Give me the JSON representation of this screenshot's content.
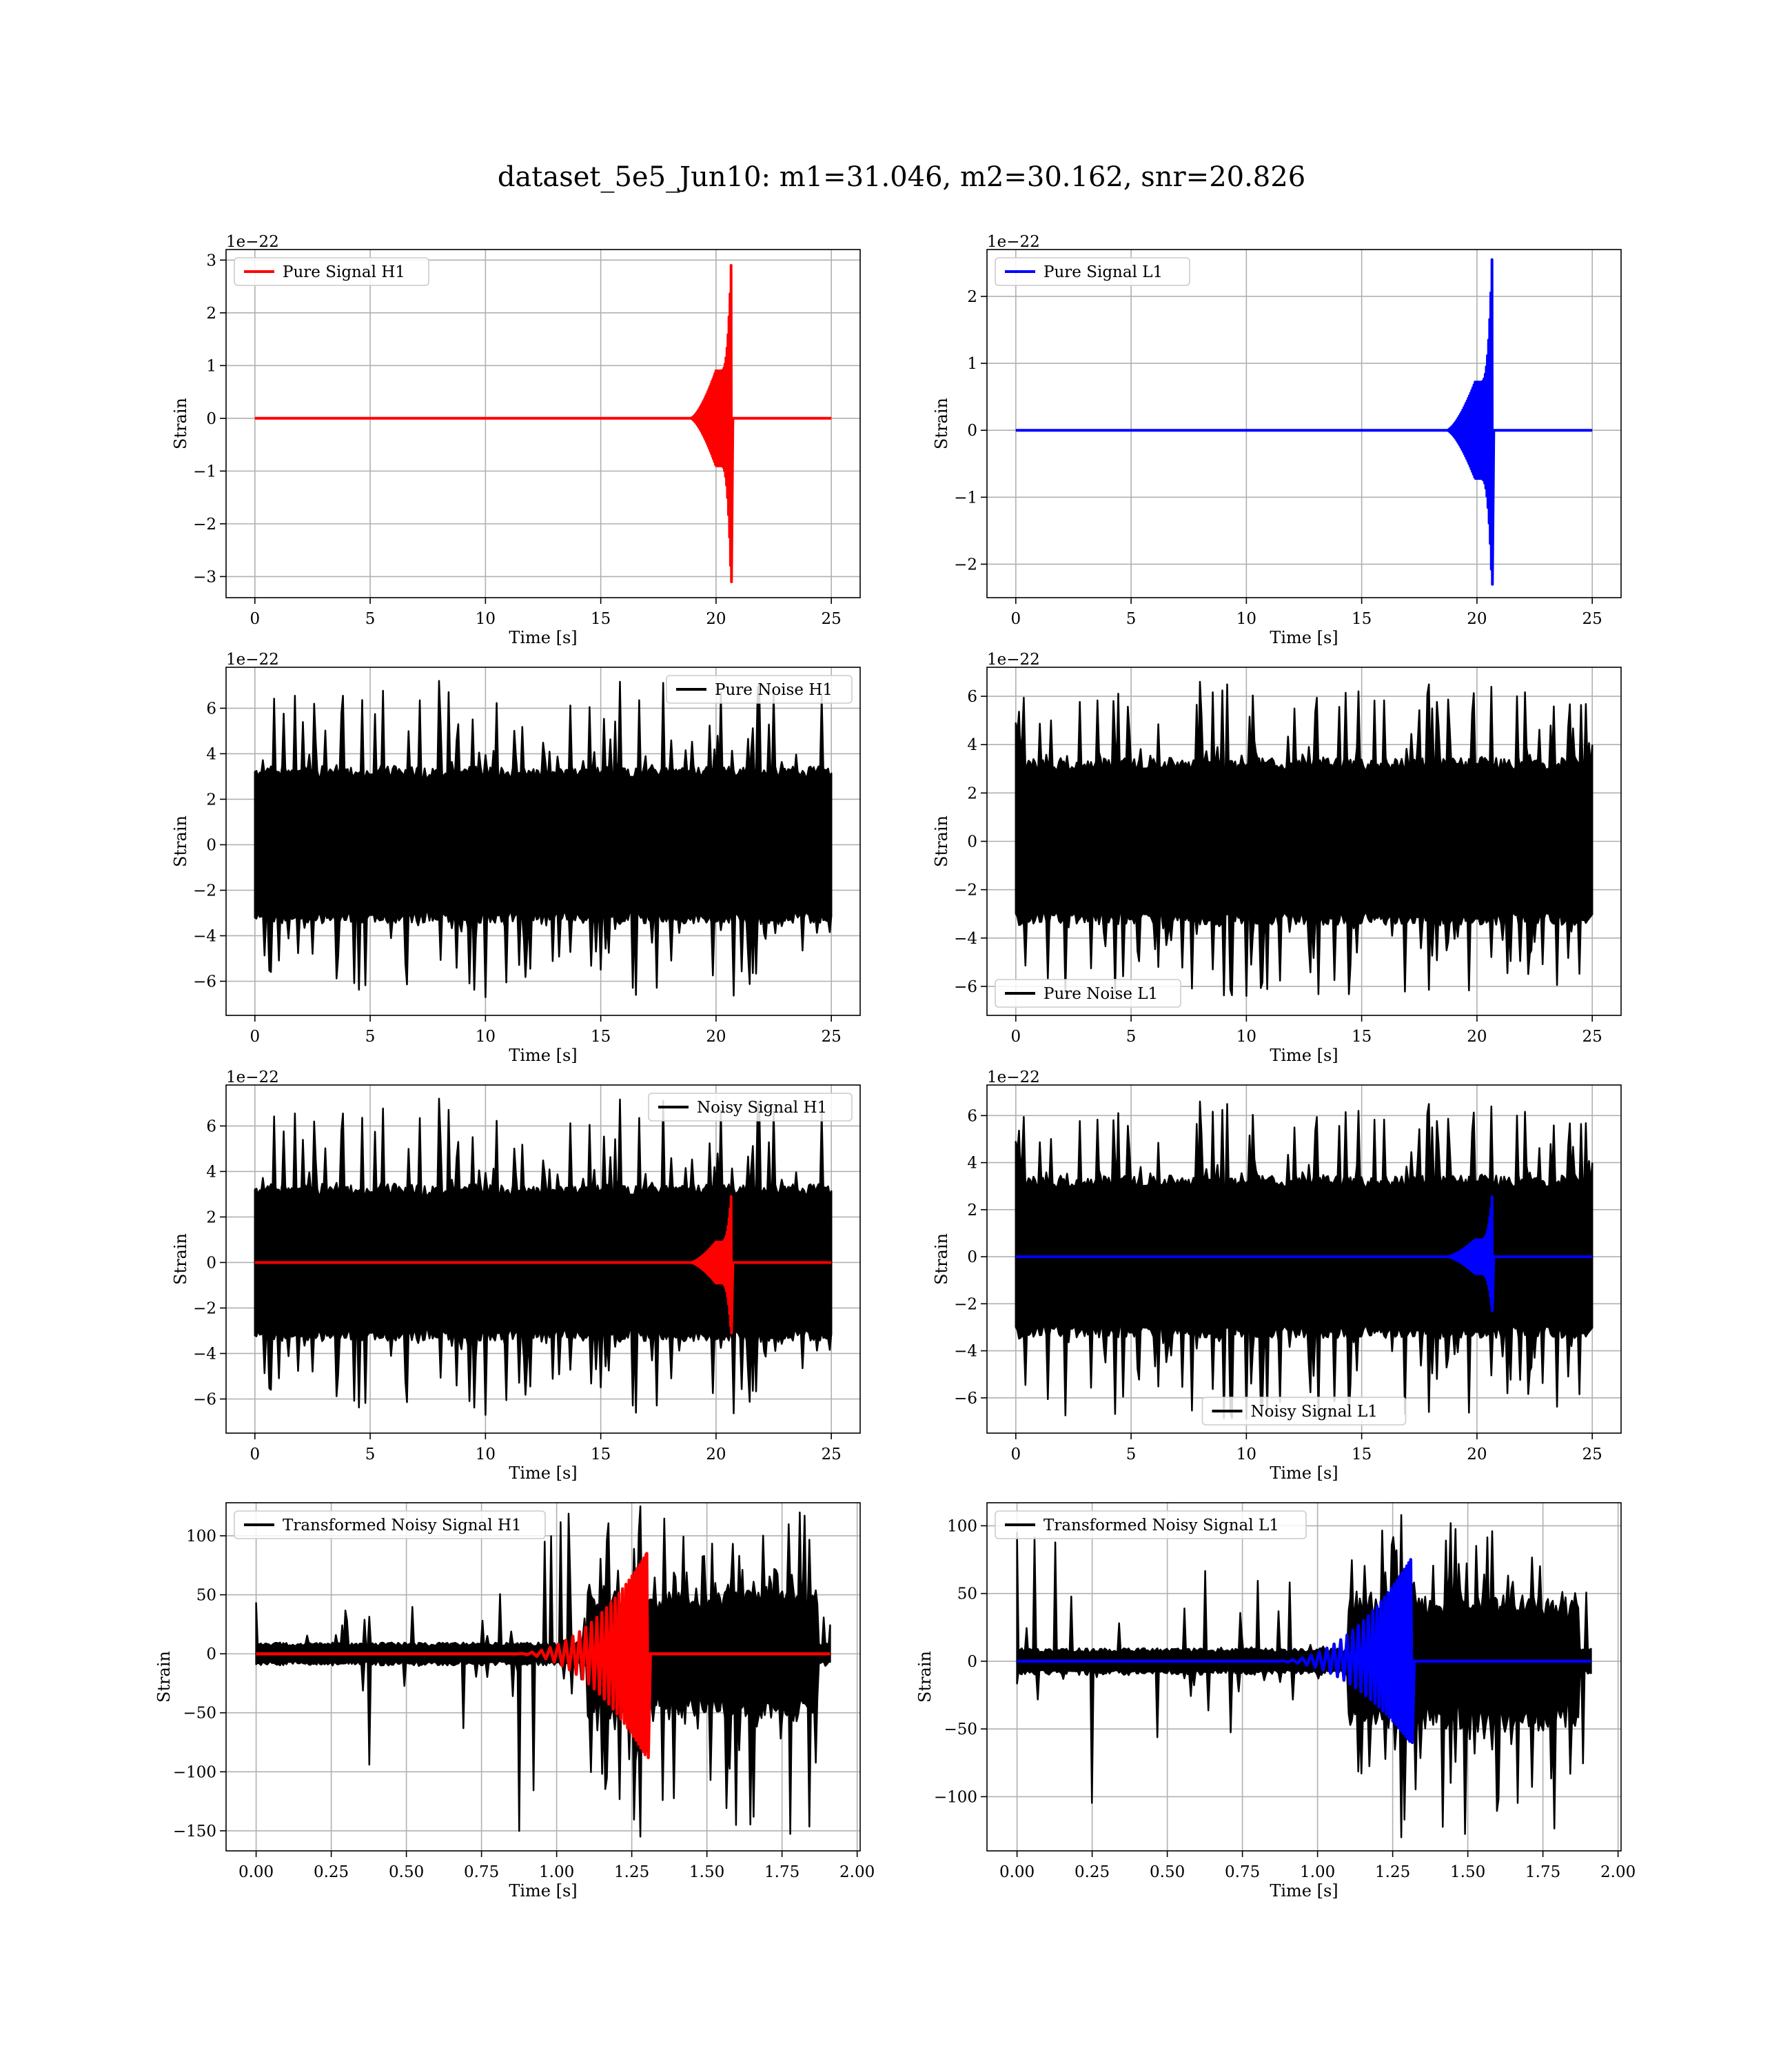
{
  "figure": {
    "title": "dataset_5e5_Jun10: m1=31.046, m2=30.162, snr=20.826"
  },
  "colors": {
    "h1_signal": "#ff0000",
    "l1_signal": "#0000ff",
    "noise": "#000000",
    "grid": "#b0b0b0"
  },
  "chart_data": [
    {
      "id": "pure-signal-h1",
      "type": "line",
      "xlabel": "Time [s]",
      "ylabel": "Strain",
      "offset_text": "1e−22",
      "xlim": [
        -1.25,
        26.25
      ],
      "ylim": [
        -3.4,
        3.2
      ],
      "xticks": [
        0,
        5,
        10,
        15,
        20,
        25
      ],
      "xtick_labels": [
        "0",
        "5",
        "10",
        "15",
        "20",
        "25"
      ],
      "yticks": [
        -3,
        -2,
        -1,
        0,
        1,
        2,
        3
      ],
      "ytick_labels": [
        "−3",
        "−2",
        "−1",
        "0",
        "1",
        "2",
        "3"
      ],
      "legend_position": "upper left",
      "grid": true,
      "series": [
        {
          "name": "Pure Signal H1",
          "color": "#ff0000",
          "kind": "chirp",
          "x_range": [
            0,
            25
          ],
          "t_merge": 20.65,
          "peak_pos": 2.9,
          "peak_neg": -3.1,
          "early_amp": 0.9,
          "onset": 18.9,
          "in_legend": true
        }
      ]
    },
    {
      "id": "pure-signal-l1",
      "type": "line",
      "xlabel": "Time [s]",
      "ylabel": "Strain",
      "offset_text": "1e−22",
      "xlim": [
        -1.25,
        26.25
      ],
      "ylim": [
        -2.5,
        2.7
      ],
      "xticks": [
        0,
        5,
        10,
        15,
        20,
        25
      ],
      "xtick_labels": [
        "0",
        "5",
        "10",
        "15",
        "20",
        "25"
      ],
      "yticks": [
        -2,
        -1,
        0,
        1,
        2
      ],
      "ytick_labels": [
        "−2",
        "−1",
        "0",
        "1",
        "2"
      ],
      "legend_position": "upper left",
      "grid": true,
      "series": [
        {
          "name": "Pure Signal L1",
          "color": "#0000ff",
          "kind": "chirp",
          "x_range": [
            0,
            25
          ],
          "t_merge": 20.65,
          "peak_pos": 2.55,
          "peak_neg": -2.3,
          "early_amp": 0.72,
          "onset": 18.7,
          "in_legend": true
        }
      ]
    },
    {
      "id": "pure-noise-h1",
      "type": "line",
      "xlabel": "Time [s]",
      "ylabel": "Strain",
      "offset_text": "1e−22",
      "xlim": [
        -1.25,
        26.25
      ],
      "ylim": [
        -7.5,
        7.8
      ],
      "xticks": [
        0,
        5,
        10,
        15,
        20,
        25
      ],
      "xtick_labels": [
        "0",
        "5",
        "10",
        "15",
        "20",
        "25"
      ],
      "yticks": [
        -6,
        -4,
        -2,
        0,
        2,
        4,
        6
      ],
      "ytick_labels": [
        "−6",
        "−4",
        "−2",
        "0",
        "2",
        "4",
        "6"
      ],
      "legend_position": "upper right",
      "grid": true,
      "series": [
        {
          "name": "Pure Noise H1",
          "color": "#000000",
          "kind": "noise",
          "x_range": [
            0,
            25
          ],
          "band": 3.2,
          "spike_max": 7.2,
          "spike_min": -6.7,
          "seed": 11,
          "in_legend": true
        }
      ]
    },
    {
      "id": "pure-noise-l1",
      "type": "line",
      "xlabel": "Time [s]",
      "ylabel": "Strain",
      "offset_text": "1e−22",
      "xlim": [
        -1.25,
        26.25
      ],
      "ylim": [
        -7.2,
        7.2
      ],
      "xticks": [
        0,
        5,
        10,
        15,
        20,
        25
      ],
      "xtick_labels": [
        "0",
        "5",
        "10",
        "15",
        "20",
        "25"
      ],
      "yticks": [
        -6,
        -4,
        -2,
        0,
        2,
        4,
        6
      ],
      "ytick_labels": [
        "−6",
        "−4",
        "−2",
        "0",
        "2",
        "4",
        "6"
      ],
      "legend_position": "lower left",
      "grid": true,
      "series": [
        {
          "name": "Pure Noise L1",
          "color": "#000000",
          "kind": "noise",
          "x_range": [
            0,
            25
          ],
          "band": 3.2,
          "spike_max": 6.6,
          "spike_min": -6.4,
          "seed": 23,
          "in_legend": true
        }
      ]
    },
    {
      "id": "noisy-signal-h1",
      "type": "line",
      "xlabel": "Time [s]",
      "ylabel": "Strain",
      "offset_text": "1e−22",
      "xlim": [
        -1.25,
        26.25
      ],
      "ylim": [
        -7.5,
        7.8
      ],
      "xticks": [
        0,
        5,
        10,
        15,
        20,
        25
      ],
      "xtick_labels": [
        "0",
        "5",
        "10",
        "15",
        "20",
        "25"
      ],
      "yticks": [
        -6,
        -4,
        -2,
        0,
        2,
        4,
        6
      ],
      "ytick_labels": [
        "−6",
        "−4",
        "−2",
        "0",
        "2",
        "4",
        "6"
      ],
      "legend_position": "upper right",
      "grid": true,
      "series": [
        {
          "name": "Noisy Signal H1",
          "color": "#000000",
          "kind": "noise",
          "x_range": [
            0,
            25
          ],
          "band": 3.2,
          "spike_max": 7.2,
          "spike_min": -6.7,
          "seed": 11,
          "in_legend": true
        },
        {
          "name": "",
          "color": "#ff0000",
          "kind": "chirp",
          "x_range": [
            0,
            25
          ],
          "t_merge": 20.65,
          "peak_pos": 2.9,
          "peak_neg": -3.1,
          "early_amp": 0.9,
          "onset": 18.9,
          "in_legend": false
        }
      ]
    },
    {
      "id": "noisy-signal-l1",
      "type": "line",
      "xlabel": "Time [s]",
      "ylabel": "Strain",
      "offset_text": "1e−22",
      "xlim": [
        -1.25,
        26.25
      ],
      "ylim": [
        -7.5,
        7.3
      ],
      "xticks": [
        0,
        5,
        10,
        15,
        20,
        25
      ],
      "xtick_labels": [
        "0",
        "5",
        "10",
        "15",
        "20",
        "25"
      ],
      "yticks": [
        -6,
        -4,
        -2,
        0,
        2,
        4,
        6
      ],
      "ytick_labels": [
        "−6",
        "−4",
        "−2",
        "0",
        "2",
        "4",
        "6"
      ],
      "legend_position": "lower center",
      "grid": true,
      "series": [
        {
          "name": "Noisy Signal L1",
          "color": "#000000",
          "kind": "noise",
          "x_range": [
            0,
            25
          ],
          "band": 3.2,
          "spike_max": 6.6,
          "spike_min": -6.9,
          "seed": 23,
          "in_legend": true
        },
        {
          "name": "",
          "color": "#0000ff",
          "kind": "chirp",
          "x_range": [
            0,
            25
          ],
          "t_merge": 20.65,
          "peak_pos": 2.55,
          "peak_neg": -2.3,
          "early_amp": 0.72,
          "onset": 18.7,
          "in_legend": false
        }
      ]
    },
    {
      "id": "transformed-noisy-signal-h1",
      "type": "line",
      "xlabel": "Time [s]",
      "ylabel": "Strain",
      "offset_text": "",
      "xlim": [
        -0.1,
        2.01
      ],
      "ylim": [
        -167,
        128
      ],
      "xticks": [
        0,
        0.25,
        0.5,
        0.75,
        1,
        1.25,
        1.5,
        1.75,
        2
      ],
      "xtick_labels": [
        "0.00",
        "0.25",
        "0.50",
        "0.75",
        "1.00",
        "1.25",
        "1.50",
        "1.75",
        "2.00"
      ],
      "yticks": [
        -150,
        -100,
        -50,
        0,
        50,
        100
      ],
      "ytick_labels": [
        "−150",
        "−100",
        "−50",
        "0",
        "50",
        "100"
      ],
      "legend_position": "upper left",
      "grid": true,
      "series": [
        {
          "name": "Transformed Noisy Signal H1",
          "color": "#000000",
          "kind": "tnoise",
          "x_range": [
            0,
            1.91
          ],
          "band_early": 8,
          "band_late": 45,
          "cut_start": 1.1,
          "cut_end": 1.87,
          "spike_max": 125,
          "spike_min": -155,
          "seed": 37,
          "in_legend": true
        },
        {
          "name": "",
          "color": "#ff0000",
          "kind": "tchirp",
          "x_range": [
            0,
            1.91
          ],
          "t_merge": 1.3,
          "peak_pos": 85,
          "peak_neg": -88,
          "onset": 0.85,
          "in_legend": false
        }
      ]
    },
    {
      "id": "transformed-noisy-signal-l1",
      "type": "line",
      "xlabel": "Time [s]",
      "ylabel": "Strain",
      "offset_text": "",
      "xlim": [
        -0.1,
        2.01
      ],
      "ylim": [
        -140,
        117
      ],
      "xticks": [
        0,
        0.25,
        0.5,
        0.75,
        1,
        1.25,
        1.5,
        1.75,
        2
      ],
      "xtick_labels": [
        "0.00",
        "0.25",
        "0.50",
        "0.75",
        "1.00",
        "1.25",
        "1.50",
        "1.75",
        "2.00"
      ],
      "yticks": [
        -100,
        -50,
        0,
        50,
        100
      ],
      "ytick_labels": [
        "−100",
        "−50",
        "0",
        "50",
        "100"
      ],
      "legend_position": "upper left",
      "grid": true,
      "series": [
        {
          "name": "Transformed Noisy Signal L1",
          "color": "#000000",
          "kind": "tnoise",
          "x_range": [
            0,
            1.91
          ],
          "band_early": 8,
          "band_late": 40,
          "cut_start": 1.1,
          "cut_end": 1.87,
          "spike_max": 108,
          "spike_min": -130,
          "seed": 53,
          "in_legend": true
        },
        {
          "name": "",
          "color": "#0000ff",
          "kind": "tchirp",
          "x_range": [
            0,
            1.91
          ],
          "t_merge": 1.31,
          "peak_pos": 75,
          "peak_neg": -60,
          "onset": 0.85,
          "in_legend": false
        }
      ]
    }
  ]
}
